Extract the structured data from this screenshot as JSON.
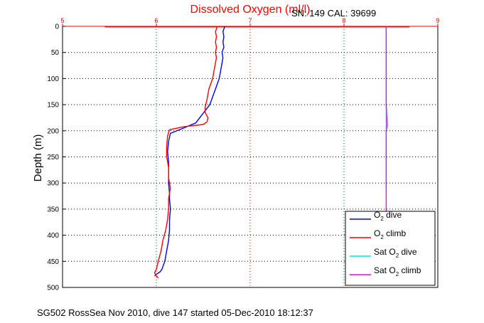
{
  "chart_data": {
    "type": "line",
    "title": "Dissolved Oxygen (ml/l)",
    "subtitle": "SN: 149  CAL: 39699",
    "caption": "SG502 RossSea Nov 2010, dive 147 started 05-Dec-2010 18:12:37",
    "ylabel": "Depth (m)",
    "xlabel": "",
    "xlim": [
      5,
      9
    ],
    "ylim": [
      0,
      500
    ],
    "y_reversed": true,
    "x_ticks": [
      "5",
      "6",
      "7",
      "8",
      "9"
    ],
    "y_ticks": [
      "0",
      "50",
      "100",
      "150",
      "200",
      "250",
      "300",
      "350",
      "400",
      "450",
      "500"
    ],
    "grid": true,
    "legend_position": "bottom-right",
    "series": [
      {
        "name": "O2 dive",
        "legend_main": "O",
        "legend_sub": "2",
        "legend_rest": " dive",
        "color": "#0000ff",
        "x": [
          6.73,
          6.71,
          6.72,
          6.71,
          6.72,
          6.7,
          6.71,
          6.7,
          6.69,
          6.68,
          6.67,
          6.63,
          6.57,
          6.42,
          6.26,
          6.15,
          6.13,
          6.12,
          6.13,
          6.13,
          6.13,
          6.14,
          6.14,
          6.15,
          6.14,
          6.14,
          6.13,
          6.11,
          6.09,
          6.07,
          6.06,
          6.04,
          6.0,
          5.98
        ],
        "y": [
          0,
          10,
          20,
          30,
          40,
          50,
          60,
          70,
          80,
          90,
          100,
          120,
          150,
          185,
          197,
          205,
          220,
          240,
          260,
          280,
          300,
          320,
          330,
          350,
          370,
          390,
          410,
          430,
          450,
          460,
          465,
          470,
          475,
          478
        ]
      },
      {
        "name": "O2 climb",
        "legend_main": "O",
        "legend_sub": "2",
        "legend_rest": " climb",
        "color": "#ff0000",
        "x": [
          6.65,
          6.63,
          6.64,
          6.63,
          6.64,
          6.63,
          6.64,
          6.63,
          6.62,
          6.61,
          6.6,
          6.56,
          6.54,
          6.52,
          6.52,
          6.55,
          6.54,
          6.5,
          6.3,
          6.14,
          6.12,
          6.11,
          6.11,
          6.13,
          6.13,
          6.15,
          6.13,
          6.13,
          6.12,
          6.1,
          6.07,
          6.05,
          6.02,
          6.0,
          5.98,
          6.0,
          6.02
        ],
        "y": [
          0,
          10,
          20,
          30,
          40,
          50,
          60,
          70,
          80,
          90,
          100,
          120,
          140,
          155,
          165,
          175,
          183,
          188,
          192,
          198,
          210,
          230,
          250,
          270,
          290,
          310,
          330,
          350,
          370,
          390,
          410,
          430,
          450,
          465,
          472,
          478,
          482
        ]
      },
      {
        "name": "Sat O2 dive",
        "legend_main": "Sat O",
        "legend_sub": "2",
        "legend_rest": " dive",
        "color": "#00e5e5",
        "x": [
          8.45,
          8.45,
          8.45,
          8.45,
          8.45,
          8.45,
          8.45,
          8.45
        ],
        "y": [
          0,
          50,
          100,
          150,
          200,
          250,
          300,
          318
        ]
      },
      {
        "name": "Sat O2 climb",
        "legend_main": "Sat O",
        "legend_sub": "2",
        "legend_rest": " climb",
        "color": "#ff00ff",
        "x": [
          8.45,
          8.45,
          8.45,
          8.45,
          8.46,
          8.45,
          8.45,
          8.45,
          8.45
        ],
        "y": [
          0,
          50,
          100,
          150,
          190,
          200,
          250,
          300,
          355
        ]
      }
    ]
  }
}
